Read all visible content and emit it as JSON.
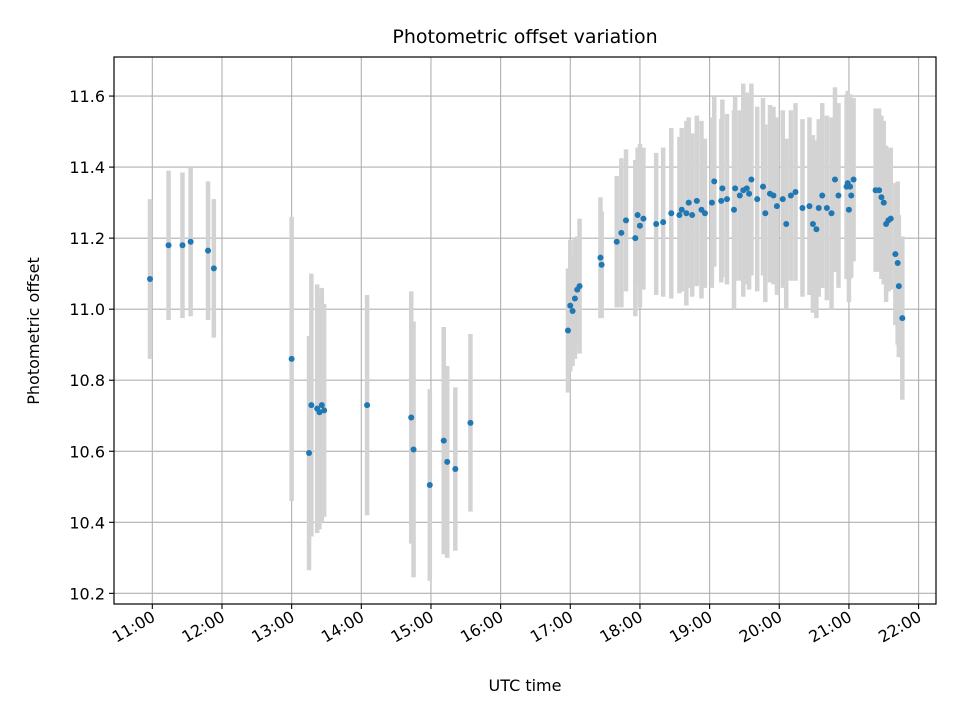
{
  "chart_data": {
    "type": "scatter",
    "title": "Photometric offset variation",
    "xlabel": "UTC time",
    "ylabel": "Photometric offset",
    "xlim": [
      "10:27",
      "22:15"
    ],
    "ylim": [
      10.17,
      11.71
    ],
    "grid": true,
    "x_ticks": [
      "11:00",
      "12:00",
      "13:00",
      "14:00",
      "15:00",
      "16:00",
      "17:00",
      "18:00",
      "19:00",
      "20:00",
      "21:00",
      "22:00"
    ],
    "y_ticks": [
      10.2,
      10.4,
      10.6,
      10.8,
      11.0,
      11.2,
      11.4,
      11.6
    ],
    "y_tick_labels": [
      "10.2",
      "10.4",
      "10.6",
      "10.8",
      "11.0",
      "11.2",
      "11.4",
      "11.6"
    ],
    "colors": {
      "point": "#1f77b4",
      "errorbar": "#d3d3d3",
      "grid": "#b0b0b0"
    },
    "series": [
      {
        "x": [
          "10:58",
          "11:14",
          "11:26",
          "11:33",
          "11:48",
          "11:53",
          "13:00",
          "13:15",
          "13:17",
          "13:22",
          "13:24",
          "13:26",
          "13:28",
          "14:05",
          "14:43",
          "14:45",
          "14:59",
          "15:11",
          "15:14",
          "15:21",
          "15:34",
          "16:58",
          "17:00",
          "17:02",
          "17:04",
          "17:06",
          "17:08",
          "17:26",
          "17:27",
          "17:40",
          "17:44",
          "17:48",
          "17:56",
          "17:58",
          "18:00",
          "18:03",
          "18:14",
          "18:20",
          "18:27",
          "18:34",
          "18:36",
          "18:40",
          "18:42",
          "18:45",
          "18:49",
          "18:53",
          "18:56",
          "19:02",
          "19:04",
          "19:10",
          "19:11",
          "19:15",
          "19:21",
          "19:22",
          "19:26",
          "19:29",
          "19:32",
          "19:34",
          "19:36",
          "19:41",
          "19:46",
          "19:48",
          "19:52",
          "19:55",
          "19:58",
          "20:03",
          "20:06",
          "20:10",
          "20:14",
          "20:20",
          "20:26",
          "20:29",
          "20:32",
          "20:34",
          "20:37",
          "20:41",
          "20:45",
          "20:48",
          "20:51",
          "20:58",
          "20:59",
          "21:00",
          "21:01",
          "21:02",
          "21:04",
          "21:23",
          "21:26",
          "21:28",
          "21:30",
          "21:32",
          "21:34",
          "21:36",
          "21:40",
          "21:42",
          "21:43",
          "21:46"
        ],
        "y": [
          11.085,
          11.18,
          11.18,
          11.19,
          11.165,
          11.115,
          10.86,
          10.595,
          10.73,
          10.72,
          10.71,
          10.73,
          10.715,
          10.73,
          10.695,
          10.605,
          10.505,
          10.63,
          10.57,
          10.55,
          10.68,
          10.94,
          11.01,
          10.995,
          11.03,
          11.055,
          11.065,
          11.145,
          11.125,
          11.19,
          11.215,
          11.25,
          11.2,
          11.265,
          11.235,
          11.255,
          11.24,
          11.245,
          11.27,
          11.265,
          11.28,
          11.27,
          11.3,
          11.265,
          11.305,
          11.28,
          11.27,
          11.3,
          11.36,
          11.305,
          11.34,
          11.31,
          11.28,
          11.34,
          11.32,
          11.335,
          11.34,
          11.325,
          11.365,
          11.31,
          11.345,
          11.27,
          11.325,
          11.32,
          11.29,
          11.31,
          11.24,
          11.32,
          11.33,
          11.285,
          11.29,
          11.24,
          11.225,
          11.285,
          11.32,
          11.285,
          11.27,
          11.365,
          11.32,
          11.345,
          11.355,
          11.28,
          11.345,
          11.32,
          11.365,
          11.335,
          11.335,
          11.315,
          11.3,
          11.24,
          11.25,
          11.255,
          11.155,
          11.13,
          11.065,
          10.975
        ],
        "yerr": [
          0.225,
          0.21,
          0.205,
          0.21,
          0.195,
          0.195,
          0.4,
          0.33,
          0.37,
          0.35,
          0.33,
          0.33,
          0.3,
          0.31,
          0.355,
          0.36,
          0.27,
          0.32,
          0.27,
          0.23,
          0.25,
          0.175,
          0.185,
          0.155,
          0.17,
          0.15,
          0.19,
          0.17,
          0.15,
          0.185,
          0.21,
          0.2,
          0.22,
          0.19,
          0.23,
          0.2,
          0.2,
          0.21,
          0.24,
          0.22,
          0.23,
          0.26,
          0.24,
          0.23,
          0.24,
          0.25,
          0.21,
          0.24,
          0.24,
          0.23,
          0.25,
          0.24,
          0.28,
          0.26,
          0.24,
          0.3,
          0.27,
          0.27,
          0.27,
          0.26,
          0.25,
          0.25,
          0.25,
          0.25,
          0.25,
          0.25,
          0.24,
          0.24,
          0.25,
          0.25,
          0.25,
          0.25,
          0.25,
          0.25,
          0.26,
          0.26,
          0.27,
          0.26,
          0.26,
          0.26,
          0.26,
          0.26,
          0.26,
          0.23,
          0.23,
          0.23,
          0.23,
          0.23,
          0.23,
          0.22,
          0.2,
          0.2,
          0.2,
          0.23,
          0.2,
          0.23
        ]
      }
    ]
  }
}
